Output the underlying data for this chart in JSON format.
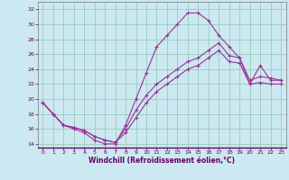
{
  "xlabel": "Windchill (Refroidissement éolien,°C)",
  "bg_color": "#cce8f0",
  "grid_color": "#99ccbb",
  "line_color": "#993399",
  "xlim": [
    -0.5,
    23.5
  ],
  "ylim": [
    13.5,
    33.0
  ],
  "yticks": [
    14,
    16,
    18,
    20,
    22,
    24,
    26,
    28,
    30,
    32
  ],
  "xticks": [
    0,
    1,
    2,
    3,
    4,
    5,
    6,
    7,
    8,
    9,
    10,
    11,
    12,
    13,
    14,
    15,
    16,
    17,
    18,
    19,
    20,
    21,
    22,
    23
  ],
  "line1_x": [
    0,
    1,
    2,
    3,
    4,
    5,
    6,
    7,
    8,
    9,
    10,
    11,
    12,
    13,
    14,
    15,
    16,
    17,
    18,
    19,
    20,
    21,
    22,
    23
  ],
  "line1_y": [
    19.5,
    18.0,
    16.5,
    16.0,
    15.5,
    14.5,
    14.0,
    14.0,
    16.5,
    20.0,
    23.5,
    27.0,
    28.5,
    30.0,
    31.5,
    31.5,
    30.5,
    28.5,
    27.0,
    25.5,
    22.0,
    24.5,
    22.5,
    22.5
  ],
  "line2_x": [
    0,
    1,
    2,
    3,
    4,
    5,
    6,
    7,
    8,
    9,
    10,
    11,
    12,
    13,
    14,
    15,
    16,
    17,
    18,
    19,
    20,
    21,
    22,
    23
  ],
  "line2_y": [
    19.5,
    18.0,
    16.5,
    16.2,
    15.8,
    15.0,
    14.5,
    14.2,
    16.0,
    18.5,
    20.5,
    22.0,
    23.0,
    24.0,
    25.0,
    25.5,
    26.5,
    27.5,
    25.8,
    25.5,
    22.5,
    23.0,
    22.8,
    22.5
  ],
  "line3_x": [
    0,
    1,
    2,
    3,
    4,
    5,
    6,
    7,
    8,
    9,
    10,
    11,
    12,
    13,
    14,
    15,
    16,
    17,
    18,
    19,
    20,
    21,
    22,
    23
  ],
  "line3_y": [
    19.5,
    18.0,
    16.5,
    16.2,
    15.8,
    15.0,
    14.5,
    14.2,
    15.5,
    17.5,
    19.5,
    21.0,
    22.0,
    23.0,
    24.0,
    24.5,
    25.5,
    26.5,
    25.0,
    24.8,
    22.0,
    22.2,
    22.0,
    22.0
  ],
  "tick_fontsize": 4.5,
  "xlabel_fontsize": 5.5
}
